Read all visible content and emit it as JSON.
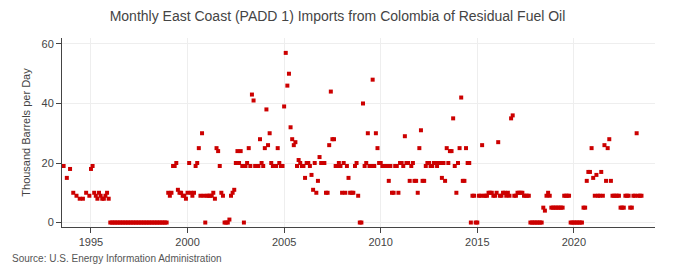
{
  "chart_data": {
    "type": "scatter",
    "title": "Monthly East Coast (PADD 1) Imports from Colombia of Residual Fuel Oil",
    "y_label": "Thousand Barrels per Day",
    "annotations": [
      "Source: U.S. Energy Information Administration"
    ],
    "color": "#cc0000",
    "marker": "square",
    "grid": true,
    "xlim": [
      1993.5,
      2024.2
    ],
    "ylim": [
      -1.5,
      62
    ],
    "xticks": [
      1995,
      2000,
      2005,
      2010,
      2015,
      2020
    ],
    "yticks": [
      0,
      20,
      40,
      60
    ],
    "x": [
      1993.583,
      1993.75,
      1993.917,
      1994.083,
      1994.25,
      1994.417,
      1994.583,
      1994.75,
      1994.917,
      1995.0,
      1995.083,
      1995.167,
      1995.25,
      1995.333,
      1995.417,
      1995.5,
      1995.583,
      1995.667,
      1995.75,
      1995.833,
      1995.917,
      1996.0,
      1996.083,
      1996.167,
      1996.25,
      1996.333,
      1996.417,
      1996.5,
      1996.583,
      1996.667,
      1996.75,
      1996.833,
      1996.917,
      1997.0,
      1997.083,
      1997.167,
      1997.25,
      1997.333,
      1997.417,
      1997.5,
      1997.583,
      1997.667,
      1997.75,
      1997.833,
      1997.917,
      1998.0,
      1998.083,
      1998.167,
      1998.25,
      1998.333,
      1998.417,
      1998.5,
      1998.583,
      1998.667,
      1998.75,
      1998.833,
      1998.917,
      1999.0,
      1999.083,
      1999.167,
      1999.25,
      1999.333,
      1999.417,
      1999.5,
      1999.583,
      1999.667,
      1999.75,
      1999.833,
      1999.917,
      2000.0,
      2000.083,
      2000.167,
      2000.25,
      2000.333,
      2000.417,
      2000.5,
      2000.583,
      2000.667,
      2000.75,
      2000.833,
      2000.917,
      2001.0,
      2001.083,
      2001.167,
      2001.25,
      2001.333,
      2001.417,
      2001.5,
      2001.583,
      2001.667,
      2001.75,
      2001.833,
      2001.917,
      2002.0,
      2002.083,
      2002.167,
      2002.25,
      2002.333,
      2002.417,
      2002.5,
      2002.583,
      2002.667,
      2002.75,
      2002.833,
      2002.917,
      2003.0,
      2003.083,
      2003.167,
      2003.25,
      2003.333,
      2003.417,
      2003.5,
      2003.583,
      2003.667,
      2003.75,
      2003.833,
      2003.917,
      2004.0,
      2004.083,
      2004.167,
      2004.25,
      2004.333,
      2004.417,
      2004.5,
      2004.583,
      2004.667,
      2004.75,
      2004.833,
      2004.917,
      2005.0,
      2005.083,
      2005.167,
      2005.25,
      2005.333,
      2005.417,
      2005.5,
      2005.583,
      2005.667,
      2005.75,
      2005.833,
      2005.917,
      2006.0,
      2006.083,
      2006.167,
      2006.25,
      2006.333,
      2006.417,
      2006.5,
      2006.583,
      2006.667,
      2006.75,
      2006.833,
      2006.917,
      2007.0,
      2007.083,
      2007.167,
      2007.25,
      2007.333,
      2007.417,
      2007.5,
      2007.583,
      2007.667,
      2007.75,
      2007.833,
      2007.917,
      2008.0,
      2008.083,
      2008.167,
      2008.25,
      2008.333,
      2008.417,
      2008.5,
      2008.583,
      2008.667,
      2008.75,
      2008.833,
      2008.917,
      2009.0,
      2009.083,
      2009.167,
      2009.25,
      2009.333,
      2009.417,
      2009.5,
      2009.583,
      2009.667,
      2009.75,
      2009.833,
      2009.917,
      2010.0,
      2010.083,
      2010.167,
      2010.25,
      2010.333,
      2010.417,
      2010.5,
      2010.583,
      2010.667,
      2010.75,
      2010.833,
      2010.917,
      2011.0,
      2011.083,
      2011.167,
      2011.25,
      2011.333,
      2011.417,
      2011.5,
      2011.583,
      2011.667,
      2011.75,
      2011.833,
      2011.917,
      2012.0,
      2012.083,
      2012.167,
      2012.25,
      2012.333,
      2012.417,
      2012.5,
      2012.583,
      2012.667,
      2012.75,
      2012.833,
      2012.917,
      2013.0,
      2013.083,
      2013.167,
      2013.25,
      2013.333,
      2013.417,
      2013.5,
      2013.583,
      2013.667,
      2013.75,
      2013.833,
      2013.917,
      2014.0,
      2014.083,
      2014.167,
      2014.25,
      2014.333,
      2014.417,
      2014.5,
      2014.583,
      2014.667,
      2014.75,
      2014.833,
      2014.917,
      2015.0,
      2015.083,
      2015.167,
      2015.25,
      2015.333,
      2015.417,
      2015.5,
      2015.583,
      2015.667,
      2015.75,
      2015.833,
      2015.917,
      2016.0,
      2016.083,
      2016.167,
      2016.25,
      2016.333,
      2016.417,
      2016.5,
      2016.583,
      2016.667,
      2016.75,
      2016.833,
      2016.917,
      2017.0,
      2017.083,
      2017.167,
      2017.25,
      2017.333,
      2017.417,
      2017.5,
      2017.583,
      2017.667,
      2017.75,
      2017.833,
      2017.917,
      2018.0,
      2018.083,
      2018.167,
      2018.25,
      2018.333,
      2018.417,
      2018.5,
      2018.583,
      2018.667,
      2018.75,
      2018.833,
      2018.917,
      2019.0,
      2019.083,
      2019.167,
      2019.25,
      2019.333,
      2019.417,
      2019.5,
      2019.583,
      2019.667,
      2019.75,
      2019.833,
      2019.917,
      2020.0,
      2020.083,
      2020.167,
      2020.25,
      2020.333,
      2020.417,
      2020.5,
      2020.583,
      2020.667,
      2020.75,
      2020.833,
      2020.917,
      2021.0,
      2021.083,
      2021.167,
      2021.25,
      2021.333,
      2021.417,
      2021.5,
      2021.583,
      2021.667,
      2021.75,
      2021.833,
      2021.917,
      2022.0,
      2022.083,
      2022.167,
      2022.25,
      2022.333,
      2022.417,
      2022.5,
      2022.583,
      2022.667,
      2022.75,
      2022.833,
      2022.917,
      2023.0,
      2023.083,
      2023.167,
      2023.25,
      2023.333,
      2023.417,
      2023.5
    ],
    "values": [
      19,
      15,
      18,
      10,
      9,
      8,
      8,
      10,
      9,
      18,
      19,
      10,
      9,
      8,
      10,
      9,
      8,
      8,
      9,
      10,
      8,
      0,
      0,
      0,
      0,
      0,
      0,
      0,
      0,
      0,
      0,
      0,
      0,
      0,
      0,
      0,
      0,
      0,
      0,
      0,
      0,
      0,
      0,
      0,
      0,
      0,
      0,
      0,
      0,
      0,
      0,
      0,
      0,
      0,
      0,
      0,
      0,
      10,
      9,
      10,
      19,
      19,
      20,
      11,
      10,
      10,
      9,
      9,
      8,
      10,
      20,
      10,
      9,
      10,
      19,
      20,
      25,
      9,
      30,
      9,
      0,
      9,
      9,
      9,
      9,
      10,
      8,
      25,
      24,
      19,
      10,
      9,
      0,
      0,
      0,
      1,
      9,
      10,
      11,
      20,
      24,
      20,
      24,
      19,
      0,
      19,
      20,
      25,
      19,
      43,
      41,
      19,
      19,
      19,
      28,
      20,
      19,
      25,
      38,
      26,
      30,
      20,
      19,
      19,
      19,
      25,
      20,
      19,
      19,
      39,
      57,
      46,
      50,
      32,
      28,
      26,
      27,
      19,
      21,
      20,
      19,
      19,
      15,
      20,
      20,
      19,
      16,
      11,
      20,
      10,
      14,
      22,
      20,
      20,
      20,
      10,
      10,
      26,
      44,
      28,
      28,
      19,
      19,
      20,
      19,
      10,
      20,
      10,
      19,
      15,
      10,
      10,
      10,
      19,
      20,
      9,
      0,
      0,
      40,
      19,
      20,
      30,
      19,
      19,
      48,
      19,
      30,
      25,
      20,
      20,
      19,
      19,
      19,
      19,
      14,
      19,
      10,
      10,
      19,
      19,
      10,
      20,
      20,
      19,
      29,
      20,
      20,
      14,
      19,
      20,
      14,
      14,
      10,
      25,
      31,
      14,
      14,
      19,
      20,
      20,
      19,
      19,
      20,
      20,
      19,
      20,
      20,
      15,
      20,
      14,
      25,
      20,
      24,
      24,
      35,
      19,
      10,
      20,
      25,
      42,
      14,
      14,
      25,
      20,
      20,
      0,
      9,
      9,
      0,
      0,
      9,
      9,
      26,
      9,
      9,
      9,
      10,
      10,
      10,
      9,
      9,
      10,
      27,
      9,
      9,
      10,
      10,
      9,
      10,
      9,
      35,
      36,
      9,
      9,
      10,
      10,
      10,
      10,
      9,
      9,
      9,
      9,
      0,
      0,
      0,
      0,
      0,
      0,
      0,
      0,
      5,
      4,
      9,
      10,
      9,
      5,
      5,
      5,
      5,
      5,
      5,
      5,
      5,
      9,
      9,
      9,
      9,
      0,
      0,
      0,
      0,
      0,
      0,
      0,
      0,
      5,
      5,
      14,
      17,
      17,
      25,
      15,
      9,
      16,
      9,
      9,
      17,
      9,
      26,
      14,
      25,
      28,
      14,
      9,
      9,
      9,
      9,
      9,
      5,
      5,
      5,
      9,
      9,
      9,
      5,
      5,
      9,
      9,
      30,
      9,
      9,
      9
    ]
  }
}
